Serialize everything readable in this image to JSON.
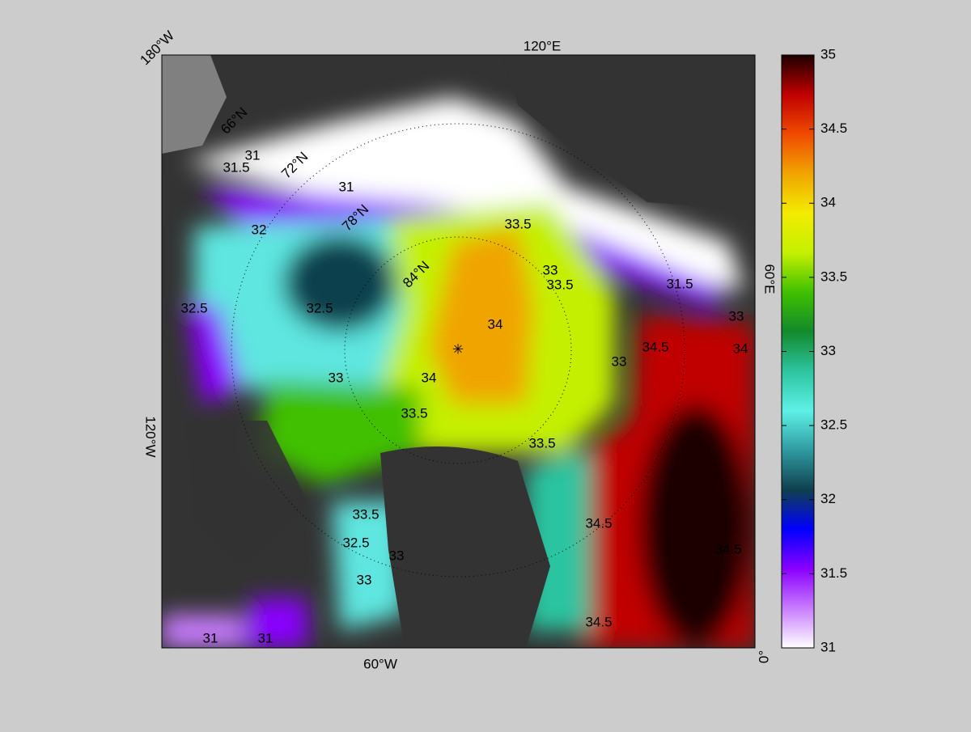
{
  "map": {
    "lon_labels": [
      "180°W",
      "120°E",
      "60°E",
      "0°",
      "60°W",
      "120°W"
    ],
    "lat_labels": [
      "66°N",
      "72°N",
      "78°N",
      "84°N"
    ],
    "contour_labels": [
      31.5,
      31,
      31,
      32,
      32.5,
      32.5,
      33,
      33.5,
      33.5,
      34,
      34,
      33.5,
      33.5,
      34.5,
      34.5,
      34.5,
      34.5,
      33,
      33,
      33,
      32.5,
      33.5,
      33,
      31.5,
      33,
      34,
      31,
      31
    ]
  },
  "colorbar": {
    "lim": [
      31,
      35
    ],
    "ticks": [
      31,
      31.5,
      32,
      32.5,
      33,
      33.5,
      34,
      34.5,
      35
    ],
    "colormap": [
      "#ffffff",
      "#c87cff",
      "#8a00ff",
      "#0000ff",
      "#10404e",
      "#2f9aa0",
      "#5ef0e6",
      "#2cc4a0",
      "#138a2c",
      "#40c000",
      "#c4f000",
      "#f4ec00",
      "#f0a400",
      "#f04a00",
      "#c00000",
      "#1e0000"
    ]
  }
}
